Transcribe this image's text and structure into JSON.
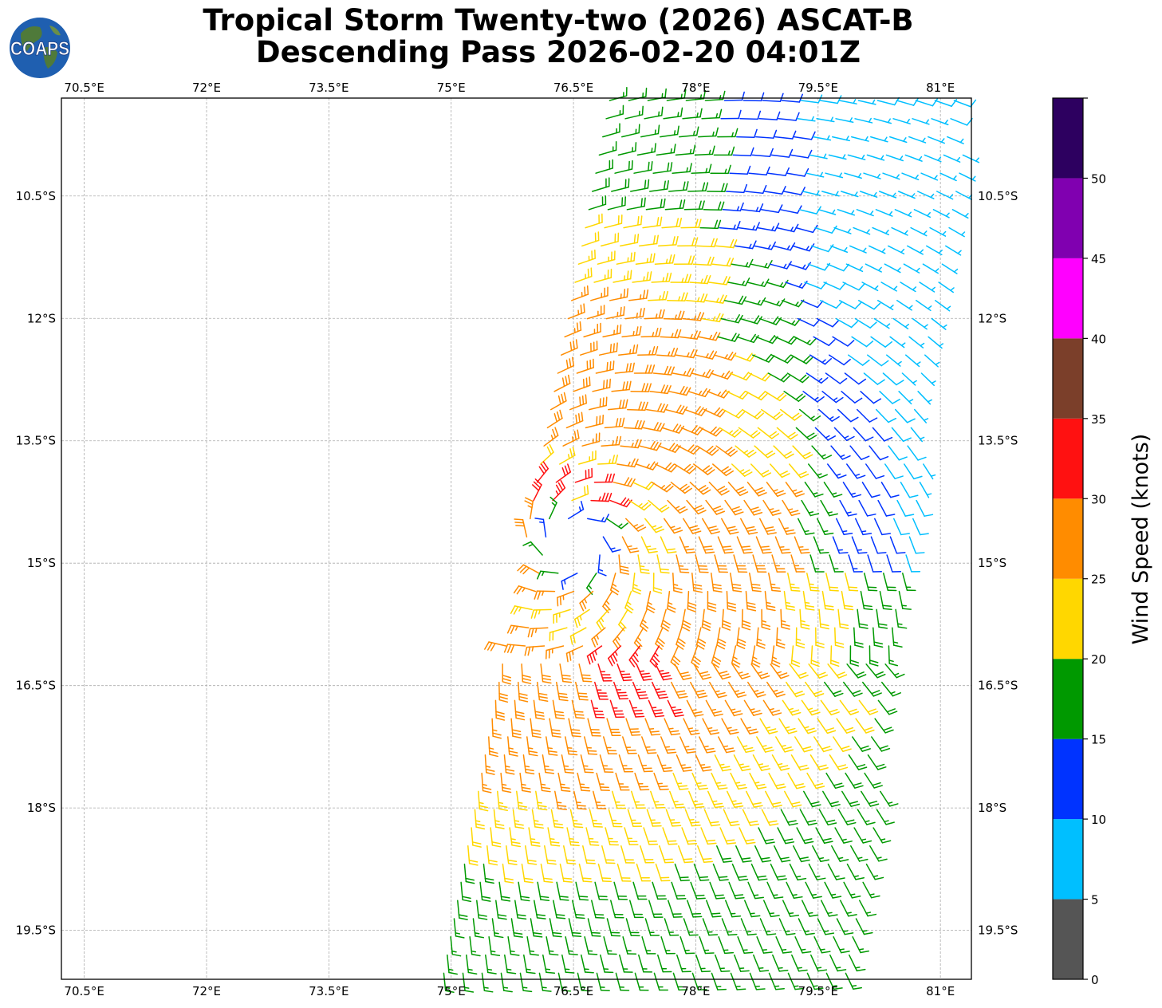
{
  "title": {
    "line1": "Tropical Storm Twenty-two (2026) ASCAT-B",
    "line2": "Descending Pass 2026-02-20 04:01Z"
  },
  "logo": {
    "text": "COAPS",
    "icon": "coaps-globe-logo",
    "ocean_color": "#1f5fb0",
    "land_color": "#4f7a3a"
  },
  "map": {
    "lon_range": [
      70.22,
      81.38
    ],
    "lat_range": [
      -20.1,
      -9.3
    ],
    "lon_ticks": [
      {
        "value": 70.5,
        "label": "70.5°E"
      },
      {
        "value": 72.0,
        "label": "72°E"
      },
      {
        "value": 73.5,
        "label": "73.5°E"
      },
      {
        "value": 75.0,
        "label": "75°E"
      },
      {
        "value": 76.5,
        "label": "76.5°E"
      },
      {
        "value": 78.0,
        "label": "78°E"
      },
      {
        "value": 79.5,
        "label": "79.5°E"
      },
      {
        "value": 81.0,
        "label": "81°E"
      }
    ],
    "lat_ticks": [
      {
        "value": -10.5,
        "label": "10.5°S"
      },
      {
        "value": -12.0,
        "label": "12°S"
      },
      {
        "value": -13.5,
        "label": "13.5°S"
      },
      {
        "value": -15.0,
        "label": "15°S"
      },
      {
        "value": -16.5,
        "label": "16.5°S"
      },
      {
        "value": -18.0,
        "label": "18°S"
      },
      {
        "value": -19.5,
        "label": "19.5°S"
      }
    ],
    "grid": "on",
    "storm_center": {
      "lon": 76.5,
      "lat": -14.75
    },
    "swath_note": "wind barbs, ASCAT-B descending swath"
  },
  "colorbar": {
    "label": "Wind Speed (knots)",
    "bounds": [
      0,
      5,
      10,
      15,
      20,
      25,
      30,
      35,
      40,
      45,
      50,
      55
    ],
    "tick_values": [
      0,
      5,
      10,
      15,
      20,
      25,
      30,
      35,
      40,
      45,
      50
    ],
    "tick_labels": [
      "0",
      "5",
      "10",
      "15",
      "20",
      "25",
      "30",
      "35",
      "40",
      "45",
      "50"
    ],
    "colors": [
      "#555555",
      "#00bfff",
      "#0033ff",
      "#009900",
      "#ffd700",
      "#ff8c00",
      "#ff1111",
      "#7b3f2a",
      "#ff00ff",
      "#8000b0",
      "#2d0060"
    ]
  }
}
